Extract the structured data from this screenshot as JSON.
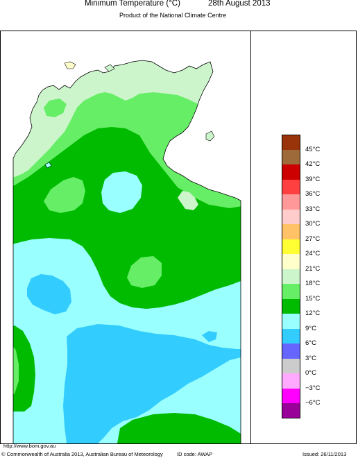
{
  "header": {
    "title": "Minimum Temperature (°C)",
    "date": "28th August 2013",
    "subtitle": "Product of the National Climate Centre"
  },
  "legend": {
    "items": [
      {
        "label": "45°C",
        "color": "#99330a"
      },
      {
        "label": "42°C",
        "color": "#9e6a3a"
      },
      {
        "label": "39°C",
        "color": "#cc0000"
      },
      {
        "label": "36°C",
        "color": "#ff4040"
      },
      {
        "label": "33°C",
        "color": "#ff9999"
      },
      {
        "label": "30°C",
        "color": "#ffcccc"
      },
      {
        "label": "27°C",
        "color": "#ffc266"
      },
      {
        "label": "24°C",
        "color": "#ffff33"
      },
      {
        "label": "21°C",
        "color": "#ffffcc"
      },
      {
        "label": "18°C",
        "color": "#ccf5cc"
      },
      {
        "label": "15°C",
        "color": "#66ee66"
      },
      {
        "label": "12°C",
        "color": "#00bb00"
      },
      {
        "label": "9°C",
        "color": "#99ffff"
      },
      {
        "label": "6°C",
        "color": "#33ccff"
      },
      {
        "label": "3°C",
        "color": "#6666ff"
      },
      {
        "label": "0°C",
        "color": "#cccccc"
      },
      {
        "label": "−3°C",
        "color": "#ffaaff"
      },
      {
        "label": "−6°C",
        "color": "#ff00ff"
      },
      {
        "label": "",
        "color": "#990099"
      }
    ]
  },
  "footer": {
    "url": "http://www.bom.gov.au",
    "copyright": "© Commonwealth of Australia 2013, Australian Bureau of Meteorology",
    "id_code": "ID code: AWAP",
    "issued": "Issued: 26/11/2013"
  }
}
